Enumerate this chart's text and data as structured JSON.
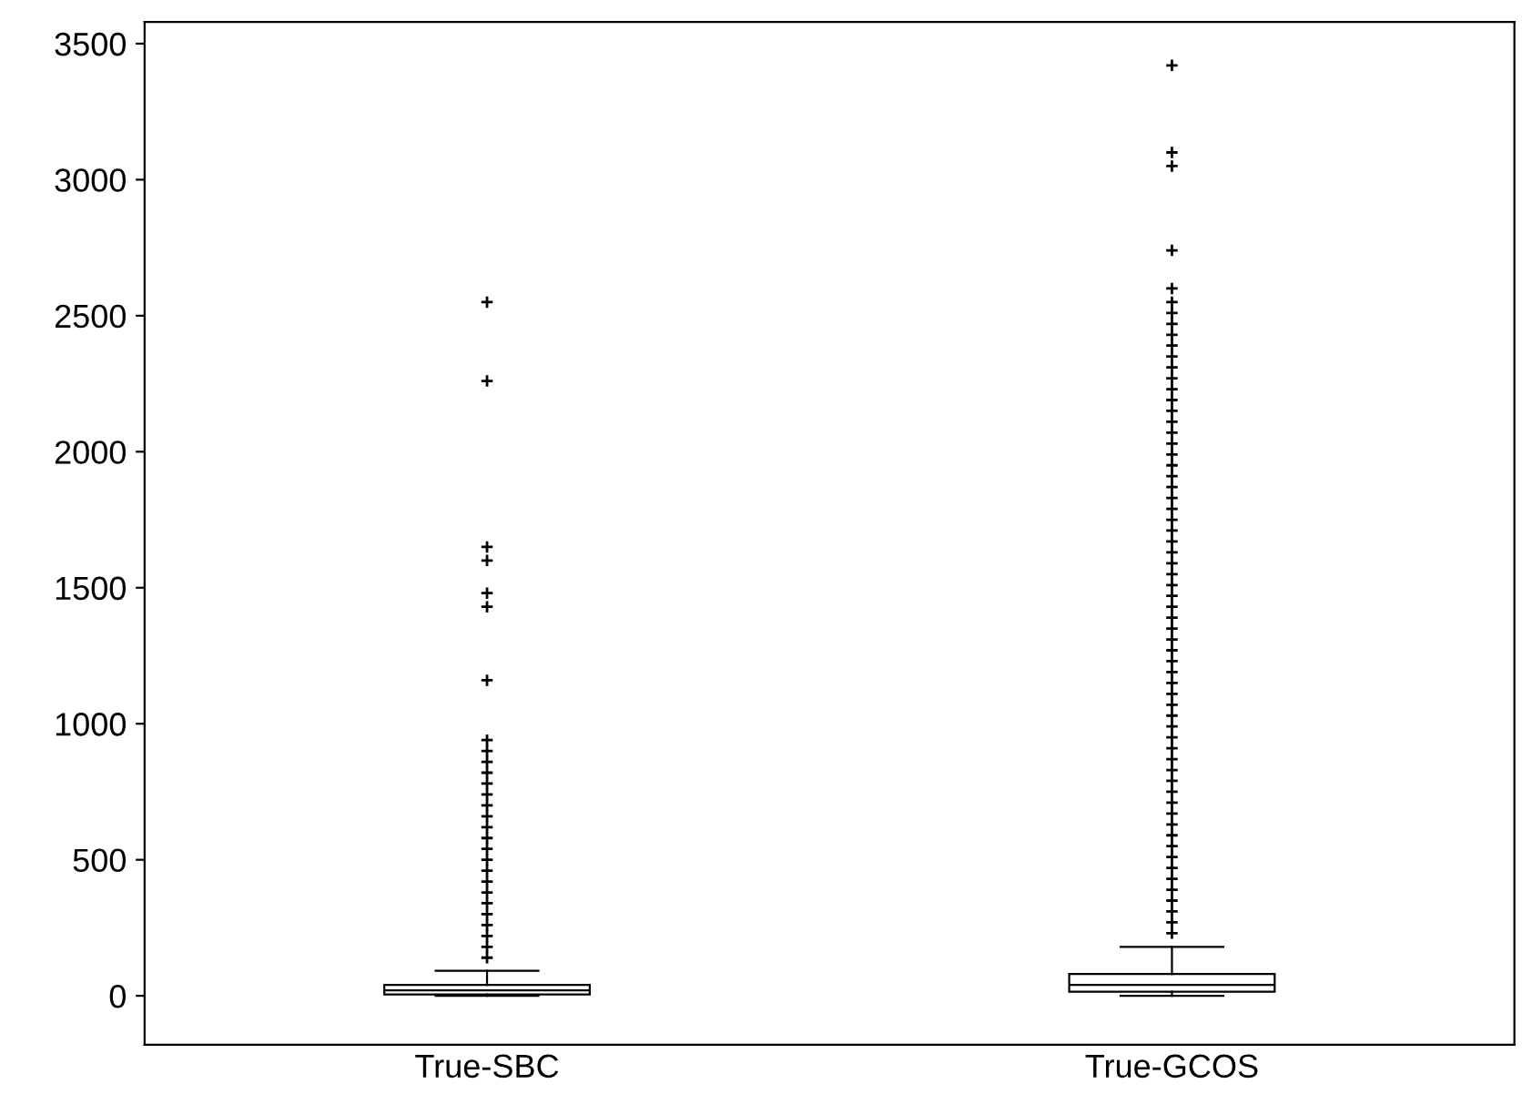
{
  "chart_data": {
    "type": "box",
    "categories": [
      "True-SBC",
      "True-GCOS"
    ],
    "ylim": [
      -180,
      3580
    ],
    "yticks": [
      0,
      500,
      1000,
      1500,
      2000,
      2500,
      3000,
      3500
    ],
    "grid": false,
    "marker": "cross",
    "color": "#000000",
    "boxes": [
      {
        "low": 0,
        "q1": 5,
        "median": 20,
        "q3": 40,
        "high": 92,
        "outliers": [
          140,
          180,
          220,
          260,
          300,
          340,
          380,
          420,
          460,
          500,
          540,
          580,
          620,
          660,
          700,
          740,
          780,
          820,
          860,
          900,
          940,
          1160,
          1430,
          1480,
          1600,
          1650,
          2260,
          2550
        ]
      },
      {
        "low": 0,
        "q1": 15,
        "median": 40,
        "q3": 80,
        "high": 180,
        "outliers": [
          230,
          270,
          310,
          350,
          390,
          430,
          470,
          510,
          550,
          590,
          630,
          670,
          710,
          750,
          790,
          830,
          870,
          910,
          950,
          990,
          1030,
          1070,
          1110,
          1150,
          1190,
          1230,
          1270,
          1310,
          1350,
          1390,
          1430,
          1470,
          1510,
          1550,
          1590,
          1630,
          1670,
          1710,
          1750,
          1790,
          1830,
          1870,
          1910,
          1950,
          1990,
          2030,
          2070,
          2110,
          2150,
          2190,
          2230,
          2270,
          2310,
          2350,
          2390,
          2430,
          2470,
          2510,
          2550,
          2600,
          2740,
          3050,
          3100,
          3420
        ]
      }
    ]
  }
}
